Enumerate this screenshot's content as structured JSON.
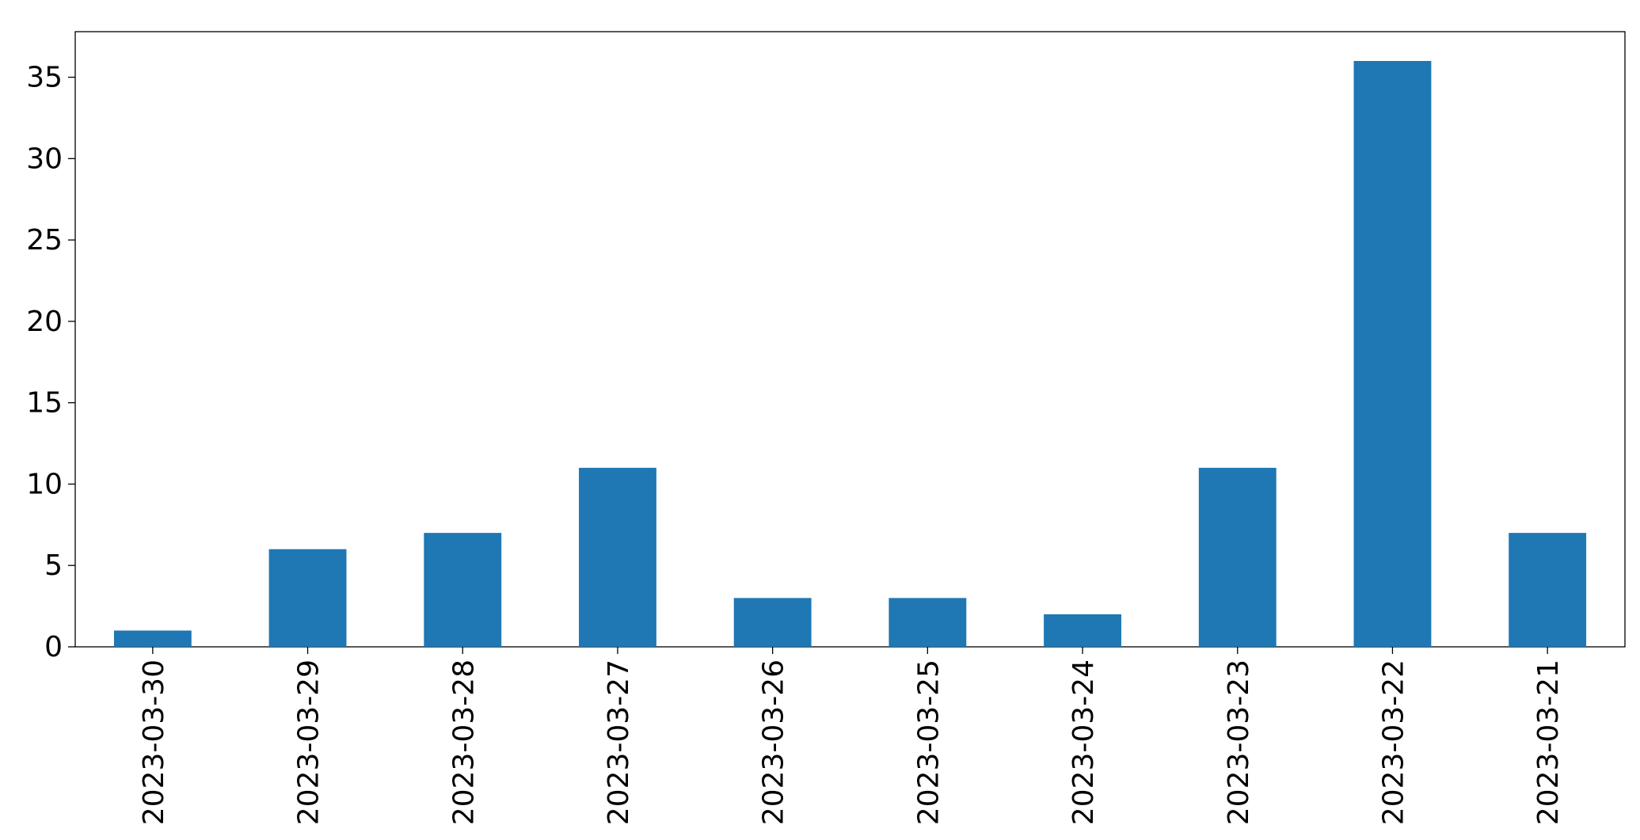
{
  "chart_data": {
    "type": "bar",
    "categories": [
      "2023-03-30",
      "2023-03-29",
      "2023-03-28",
      "2023-03-27",
      "2023-03-26",
      "2023-03-25",
      "2023-03-24",
      "2023-03-23",
      "2023-03-22",
      "2023-03-21"
    ],
    "values": [
      1,
      6,
      7,
      11,
      3,
      3,
      2,
      11,
      36,
      7
    ],
    "color": "#1f77b4",
    "ylim": [
      0,
      37.8
    ],
    "yticks": [
      0,
      5,
      10,
      15,
      20,
      25,
      30,
      35
    ],
    "grid": false
  }
}
